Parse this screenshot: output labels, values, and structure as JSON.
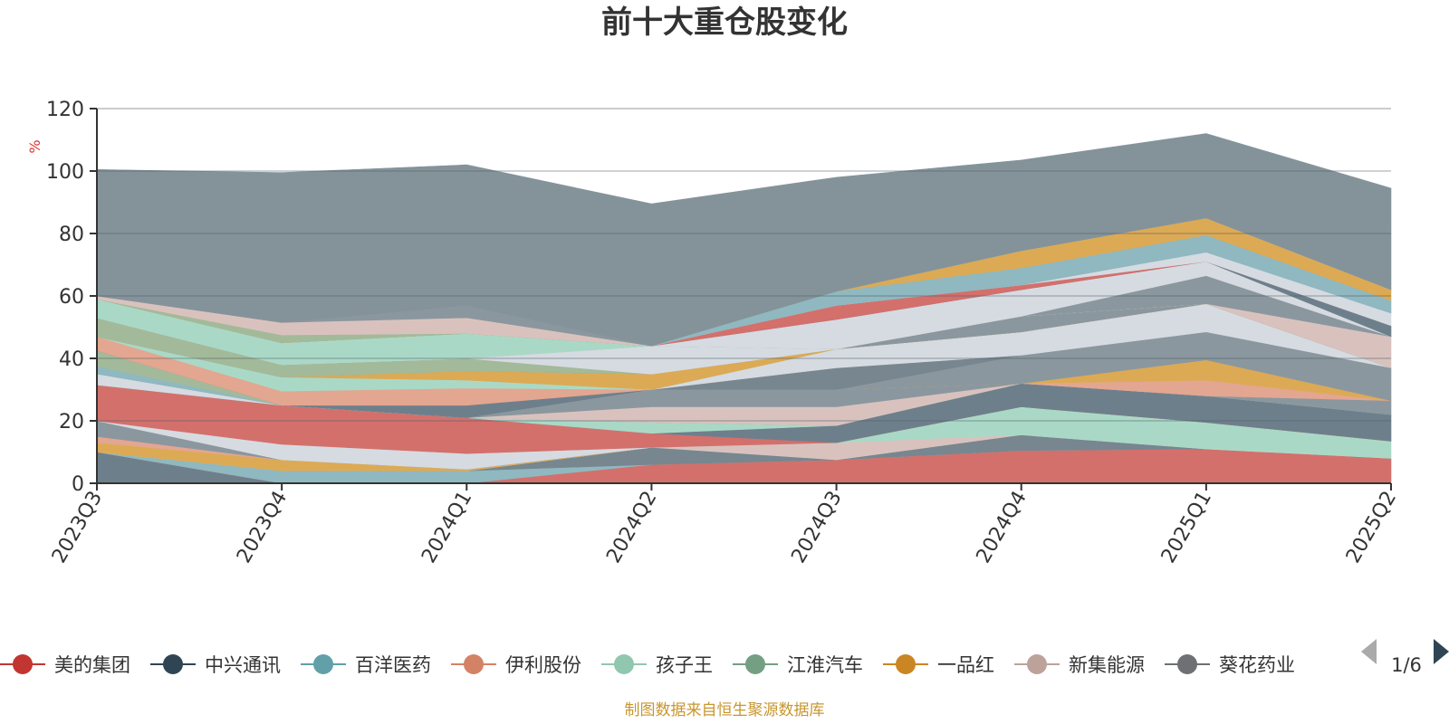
{
  "chart_data": {
    "type": "area",
    "stacked": true,
    "title": "前十大重仓股变化",
    "ylabel": "%",
    "ylim": [
      0,
      120
    ],
    "y_ticks": [
      0,
      20,
      40,
      60,
      80,
      100,
      120
    ],
    "grid": true,
    "legend_position": "bottom",
    "categories": [
      "2023Q3",
      "2023Q4",
      "2024Q1",
      "2024Q2",
      "2024Q3",
      "2024Q4",
      "2025Q1",
      "2025Q2"
    ],
    "series": [
      {
        "name": "",
        "color": "#6e7f8c",
        "values": [
          10,
          0,
          0,
          0,
          0,
          0,
          0,
          0
        ]
      },
      {
        "name": "",
        "color": "#d3706c",
        "values": [
          0,
          0,
          0,
          6,
          7.5,
          10.5,
          11,
          8
        ]
      },
      {
        "name": "",
        "color": "#8fb8c0",
        "values": [
          0,
          4,
          4,
          0,
          0,
          0,
          0,
          0
        ]
      },
      {
        "name": "",
        "color": "#78868f",
        "values": [
          0,
          0,
          0,
          5.5,
          0,
          5,
          0,
          0
        ]
      },
      {
        "name": "",
        "color": "#d9c2be",
        "values": [
          0,
          0,
          0,
          0,
          5.5,
          0,
          0,
          0
        ]
      },
      {
        "name": "",
        "color": "#a9d9c6",
        "values": [
          0,
          0,
          0,
          0,
          0,
          9,
          8.5,
          5.5
        ]
      },
      {
        "name": "",
        "color": "#dcaa55",
        "values": [
          3,
          3.5,
          0.5,
          0,
          0,
          0,
          0,
          0
        ]
      },
      {
        "name": "",
        "color": "#e3a690",
        "values": [
          2,
          0,
          0,
          0,
          0,
          0,
          0,
          0
        ]
      },
      {
        "name": "",
        "color": "#8b979e",
        "values": [
          5,
          0,
          0,
          0,
          0,
          0,
          0,
          0
        ]
      },
      {
        "name": "",
        "color": "#d6dbe1",
        "values": [
          0,
          5,
          5,
          0,
          0,
          0,
          0,
          0
        ]
      },
      {
        "name": "",
        "color": "#d3706c",
        "values": [
          11.5,
          12.5,
          11.5,
          4.5,
          0,
          0,
          0,
          0
        ]
      },
      {
        "name": "",
        "color": "#6e7f8c",
        "values": [
          0,
          0,
          0,
          0,
          5.5,
          7.5,
          8.5,
          8.5
        ]
      },
      {
        "name": "",
        "color": "#a9d9c6",
        "values": [
          0,
          0,
          0,
          3.5,
          0,
          0,
          0,
          0
        ]
      },
      {
        "name": "",
        "color": "#8b979e",
        "values": [
          0,
          0,
          0,
          0,
          0,
          0,
          0,
          4.5
        ]
      },
      {
        "name": "",
        "color": "#d9c2be",
        "values": [
          0,
          0,
          0,
          5,
          6,
          0,
          0,
          0
        ]
      },
      {
        "name": "",
        "color": "#8b979e",
        "values": [
          0,
          0,
          0,
          5.5,
          5.5,
          0,
          0,
          0
        ]
      },
      {
        "name": "",
        "color": "#e3a690",
        "values": [
          0,
          0,
          0,
          0,
          0,
          0,
          5,
          0
        ]
      },
      {
        "name": "",
        "color": "#dcaa55",
        "values": [
          0,
          0,
          0,
          0,
          0,
          0,
          6.5,
          0
        ]
      },
      {
        "name": "",
        "color": "#8b979e",
        "values": [
          0,
          0,
          0,
          0,
          0,
          9,
          9,
          10.5
        ]
      },
      {
        "name": "",
        "color": "#78868f",
        "values": [
          0,
          0,
          0,
          0,
          7,
          0,
          0,
          0
        ]
      },
      {
        "name": "",
        "color": "#d6dbe1",
        "values": [
          3.5,
          0,
          0,
          0,
          6,
          7.5,
          9,
          0
        ]
      },
      {
        "name": "",
        "color": "#8fb8c0",
        "values": [
          2.5,
          0,
          0,
          0,
          0,
          0,
          0,
          0
        ]
      },
      {
        "name": "",
        "color": "#a3ba9a",
        "values": [
          5,
          0,
          0,
          0,
          0,
          0,
          0,
          0
        ]
      },
      {
        "name": "",
        "color": "#6e7f8c",
        "values": [
          0,
          0,
          4,
          0,
          0,
          0,
          0,
          0
        ]
      },
      {
        "name": "",
        "color": "#e3a690",
        "values": [
          4.5,
          4.5,
          5.5,
          0,
          0,
          0,
          0,
          0
        ]
      },
      {
        "name": "",
        "color": "#a9d9c6",
        "values": [
          0,
          4.5,
          2.5,
          0,
          0,
          0,
          0,
          0
        ]
      },
      {
        "name": "",
        "color": "#dcaa55",
        "values": [
          0,
          0,
          3,
          5,
          0,
          0,
          0,
          0
        ]
      },
      {
        "name": "",
        "color": "#8b979e",
        "values": [
          0,
          0,
          0,
          0,
          0,
          5,
          0,
          0
        ]
      },
      {
        "name": "",
        "color": "#a3ba9a",
        "values": [
          6,
          4,
          4,
          0,
          0,
          0,
          0,
          0
        ]
      },
      {
        "name": "",
        "color": "#d9c2be",
        "values": [
          0,
          0,
          0,
          0,
          0,
          0,
          0,
          10
        ]
      },
      {
        "name": "",
        "color": "#d6dbe1",
        "values": [
          0,
          0,
          0,
          9,
          0,
          0,
          0,
          0
        ]
      },
      {
        "name": "",
        "color": "#8b979e",
        "values": [
          0,
          0,
          0,
          0,
          0,
          0,
          9,
          0
        ]
      },
      {
        "name": "",
        "color": "#d6dbe1",
        "values": [
          0,
          0,
          0,
          0,
          9.5,
          8.5,
          4.5,
          0
        ]
      },
      {
        "name": "",
        "color": "#a9d9c6",
        "values": [
          6,
          7,
          8,
          0,
          0,
          0,
          0,
          0
        ]
      },
      {
        "name": "",
        "color": "#6e7f8c",
        "values": [
          0,
          0,
          0,
          0,
          0,
          0,
          0,
          3.5
        ]
      },
      {
        "name": "",
        "color": "#d3706c",
        "values": [
          0,
          0,
          0,
          0,
          4.5,
          1.5,
          0,
          0
        ]
      },
      {
        "name": "",
        "color": "#d6dbe1",
        "values": [
          0,
          0,
          0,
          0,
          0,
          0,
          3,
          4
        ]
      },
      {
        "name": "",
        "color": "#8fb8c0",
        "values": [
          0,
          0,
          0,
          0,
          4.5,
          5.5,
          5.5,
          4
        ]
      },
      {
        "name": "",
        "color": "#dcaa55",
        "values": [
          0,
          0,
          0,
          0,
          0,
          5.5,
          5.5,
          3.5
        ]
      },
      {
        "name": "",
        "color": "#a3ba9a",
        "values": [
          0,
          2.5,
          0,
          0,
          0,
          0,
          0,
          0
        ]
      },
      {
        "name": "",
        "color": "#d9c2be",
        "values": [
          1,
          4,
          5,
          0,
          0,
          0,
          0,
          0
        ]
      },
      {
        "name": "",
        "color": "#8b979e",
        "values": [
          0,
          0,
          4,
          0,
          0,
          0,
          0,
          0
        ]
      },
      {
        "name": "",
        "color": "#84939a",
        "values": [
          40.5,
          48,
          45,
          45.5,
          36.5,
          29,
          27,
          32.5
        ]
      }
    ],
    "legend": [
      {
        "name": "美的集团",
        "color": "#c23531"
      },
      {
        "name": "中兴通讯",
        "color": "#2f4554"
      },
      {
        "name": "百洋医药",
        "color": "#61a0a8"
      },
      {
        "name": "伊利股份",
        "color": "#d48265"
      },
      {
        "name": "孩子王",
        "color": "#91c7ae"
      },
      {
        "name": "江淮汽车",
        "color": "#749f83"
      },
      {
        "name": "一品红",
        "color": "#ca8622"
      },
      {
        "name": "新集能源",
        "color": "#bda29a"
      },
      {
        "name": "葵花药业",
        "color": "#6e7074"
      }
    ],
    "legend_page": "1/6"
  },
  "source_note": "制图数据来自恒生聚源数据库"
}
